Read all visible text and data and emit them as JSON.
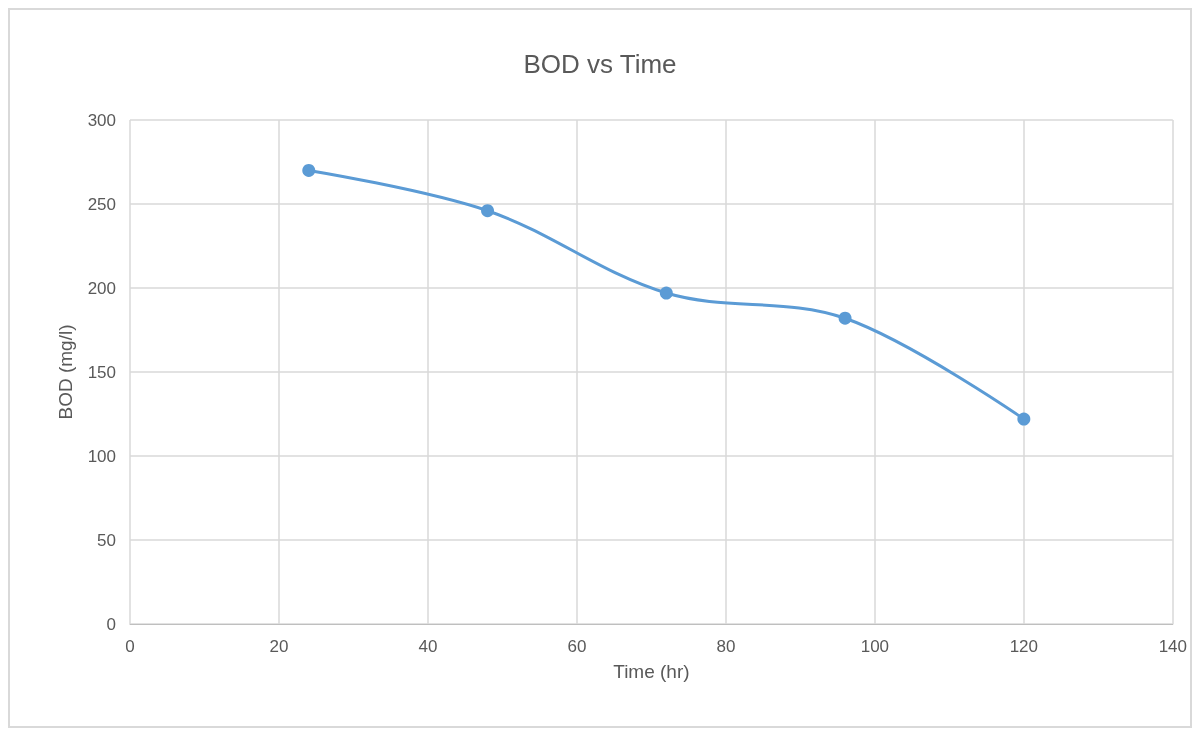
{
  "chart_data": {
    "type": "line",
    "title": "BOD vs Time",
    "xlabel": "Time (hr)",
    "ylabel": "BOD (mg/l)",
    "x": [
      24,
      48,
      72,
      96,
      120
    ],
    "series": [
      {
        "color": "#5b9bd5",
        "values": [
          270,
          246,
          197,
          182,
          122
        ]
      }
    ],
    "xlim": [
      0,
      140
    ],
    "xticks": [
      0,
      20,
      40,
      60,
      80,
      100,
      120,
      140
    ],
    "ylim": [
      0,
      300
    ],
    "yticks": [
      0,
      50,
      100,
      150,
      200,
      250,
      300
    ],
    "grid": true,
    "marker": "circle",
    "line_style": "solid"
  }
}
